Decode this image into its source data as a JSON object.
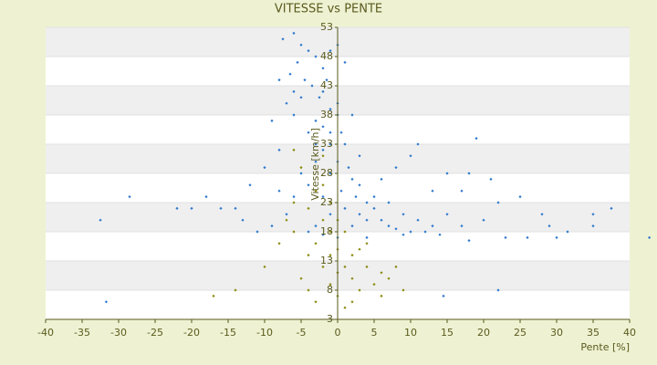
{
  "chart_data": {
    "type": "scatter",
    "title": "VITESSE vs PENTE",
    "x_label": "Pente [%]",
    "y_label": "Vitesse [km/h]",
    "xlim": [
      -40,
      40
    ],
    "xticks": [
      -40,
      -35,
      -30,
      -25,
      -20,
      -15,
      -10,
      -5,
      0,
      5,
      10,
      15,
      20,
      25,
      30,
      35,
      40
    ],
    "ylim": [
      3,
      53
    ],
    "yticks": [
      3,
      8,
      13,
      18,
      23,
      28,
      33,
      38,
      43,
      48,
      53
    ],
    "grid": true,
    "series": [
      {
        "color": "#2f78cc",
        "x": [
          -7.5,
          -6,
          -5,
          -4,
          -5.5,
          -3,
          -2,
          -6.5,
          -4.5,
          -3.5,
          -1.5,
          -2.5,
          -5,
          -1,
          0,
          -3,
          -2,
          0.5,
          1,
          -1,
          -4,
          -6,
          -7,
          -2,
          0,
          1.5,
          2,
          3,
          -1,
          -3,
          0.5,
          2.5,
          4,
          5,
          3,
          1,
          -2,
          -4,
          -5,
          6,
          7,
          8,
          10,
          12,
          14,
          4,
          2,
          -1,
          5,
          7,
          9,
          11,
          13,
          15,
          17,
          20,
          22,
          25,
          29,
          30,
          31.5,
          37.5,
          42.7,
          13,
          15,
          18,
          21,
          10,
          8,
          6,
          11,
          -8,
          -10,
          -12,
          -14,
          -16,
          -18,
          -20,
          -22,
          -28.5,
          -32.5,
          -31.7,
          -13,
          -11,
          -9,
          -7,
          -6,
          -8,
          -4,
          -3,
          0,
          1,
          -1,
          -8,
          -2,
          -6,
          0,
          -9,
          2,
          -3,
          -1,
          3,
          14.5,
          22,
          28,
          35,
          17,
          23,
          18,
          9,
          4,
          0,
          -2,
          26,
          35,
          19
        ],
        "values": [
          51,
          52,
          50,
          49,
          47,
          48,
          46,
          45,
          44,
          43,
          44,
          41,
          41,
          39,
          38,
          37,
          36,
          35,
          33,
          33,
          35,
          38,
          40,
          32,
          30,
          29,
          27,
          26,
          28,
          30,
          25,
          24,
          23,
          22,
          21,
          22,
          24,
          26,
          28,
          20,
          19,
          18.5,
          18,
          18,
          17.5,
          20,
          19,
          21,
          24,
          23,
          21,
          20,
          19,
          21,
          19,
          20,
          23,
          24,
          19,
          17,
          18,
          22,
          17,
          25,
          28,
          28,
          27,
          31,
          29,
          27,
          33,
          32,
          29,
          26,
          22,
          22,
          24,
          22,
          22,
          24,
          20,
          6,
          20,
          18,
          19,
          21,
          24,
          25,
          18,
          19,
          50,
          47,
          49,
          44,
          42,
          42,
          40,
          37,
          38,
          33,
          35,
          31,
          7,
          8,
          21,
          21,
          25,
          17,
          16.5,
          17.5,
          17,
          17,
          17.5,
          17,
          19,
          34
        ]
      },
      {
        "color": "#8c8a10",
        "x": [
          -3,
          -4,
          -6,
          -2,
          -1,
          0,
          1,
          2,
          -1,
          0,
          3,
          -2,
          -4,
          -5,
          4,
          5,
          6,
          7,
          8,
          -3,
          1,
          2,
          -6,
          -7,
          -8,
          -10,
          -14,
          -17,
          3,
          0,
          -1,
          -2,
          -5,
          2,
          4,
          -3,
          1,
          -1,
          9,
          6,
          -4,
          0,
          -2,
          -6
        ],
        "values": [
          25,
          22,
          23,
          20,
          18,
          15,
          12,
          10,
          9,
          7,
          8,
          12,
          14,
          10,
          12,
          9,
          11,
          10,
          12,
          6,
          5,
          6,
          18,
          20,
          16,
          12,
          8,
          7,
          15,
          20,
          23,
          26,
          29,
          14,
          16,
          16,
          18,
          14,
          8,
          7,
          8,
          11,
          31,
          32
        ]
      }
    ]
  }
}
